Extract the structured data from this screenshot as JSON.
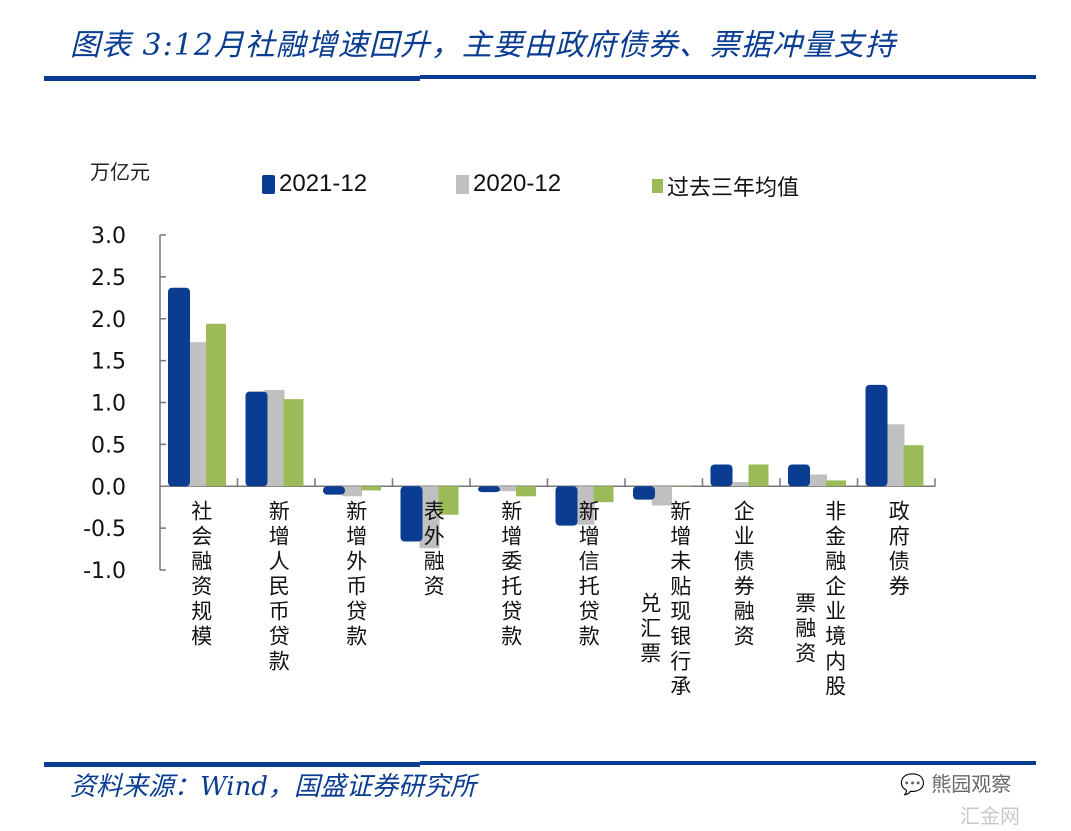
{
  "header": {
    "title": "图表 3:12月社融增速回升，主要由政府债券、票据冲量支持"
  },
  "footer": {
    "source": "资料来源：Wind，国盛证券研究所",
    "watermark": "熊园观察",
    "watermark2": "汇金网"
  },
  "colors": {
    "series_2021": "#0a3d91",
    "series_2020": "#c0c0c0",
    "series_avg": "#9bbb59",
    "accent": "#0a3d91"
  },
  "chart_data": {
    "type": "bar",
    "title": "12月社融增速回升，主要由政府债券、票据冲量支持",
    "ylabel": "万亿元",
    "xlabel": "",
    "ylim": [
      -1.0,
      3.0
    ],
    "yticks": [
      "3.0",
      "2.5",
      "2.0",
      "1.5",
      "1.0",
      "0.5",
      "0.0",
      "-0.5",
      "-1.0"
    ],
    "ytick_values": [
      3.0,
      2.5,
      2.0,
      1.5,
      1.0,
      0.5,
      0.0,
      -0.5,
      -1.0
    ],
    "legend_position": "top",
    "grid": false,
    "categories": [
      "社会融资规模",
      "新增人民币贷款",
      "新增外币贷款",
      "表外融资",
      "新增委托贷款",
      "新增信托贷款",
      "新增未贴现银行承兑汇票",
      "企业债券融资",
      "非金融企业境内股票融资",
      "政府债券"
    ],
    "category_lines": [
      [
        "社会融资规模"
      ],
      [
        "新增人民币贷款"
      ],
      [
        "新增外币贷款"
      ],
      [
        "表外融资"
      ],
      [
        "新增委托贷款"
      ],
      [
        "新增信托贷款"
      ],
      [
        "新增未贴现银行承",
        "兑汇票"
      ],
      [
        "企业债券融资"
      ],
      [
        "非金融企业境内股",
        "票融资"
      ],
      [
        "政府债券"
      ]
    ],
    "series": [
      {
        "name": "2021-12",
        "values": [
          2.37,
          1.13,
          -0.1,
          -0.66,
          -0.07,
          -0.47,
          -0.16,
          0.26,
          0.26,
          1.21
        ]
      },
      {
        "name": "2020-12",
        "values": [
          1.72,
          1.15,
          -0.12,
          -0.74,
          -0.06,
          -0.46,
          -0.23,
          0.05,
          0.14,
          0.74
        ]
      },
      {
        "name": "过去三年均值",
        "values": [
          1.94,
          1.04,
          -0.05,
          -0.34,
          -0.12,
          -0.19,
          0.0,
          0.26,
          0.07,
          0.49
        ]
      }
    ]
  }
}
